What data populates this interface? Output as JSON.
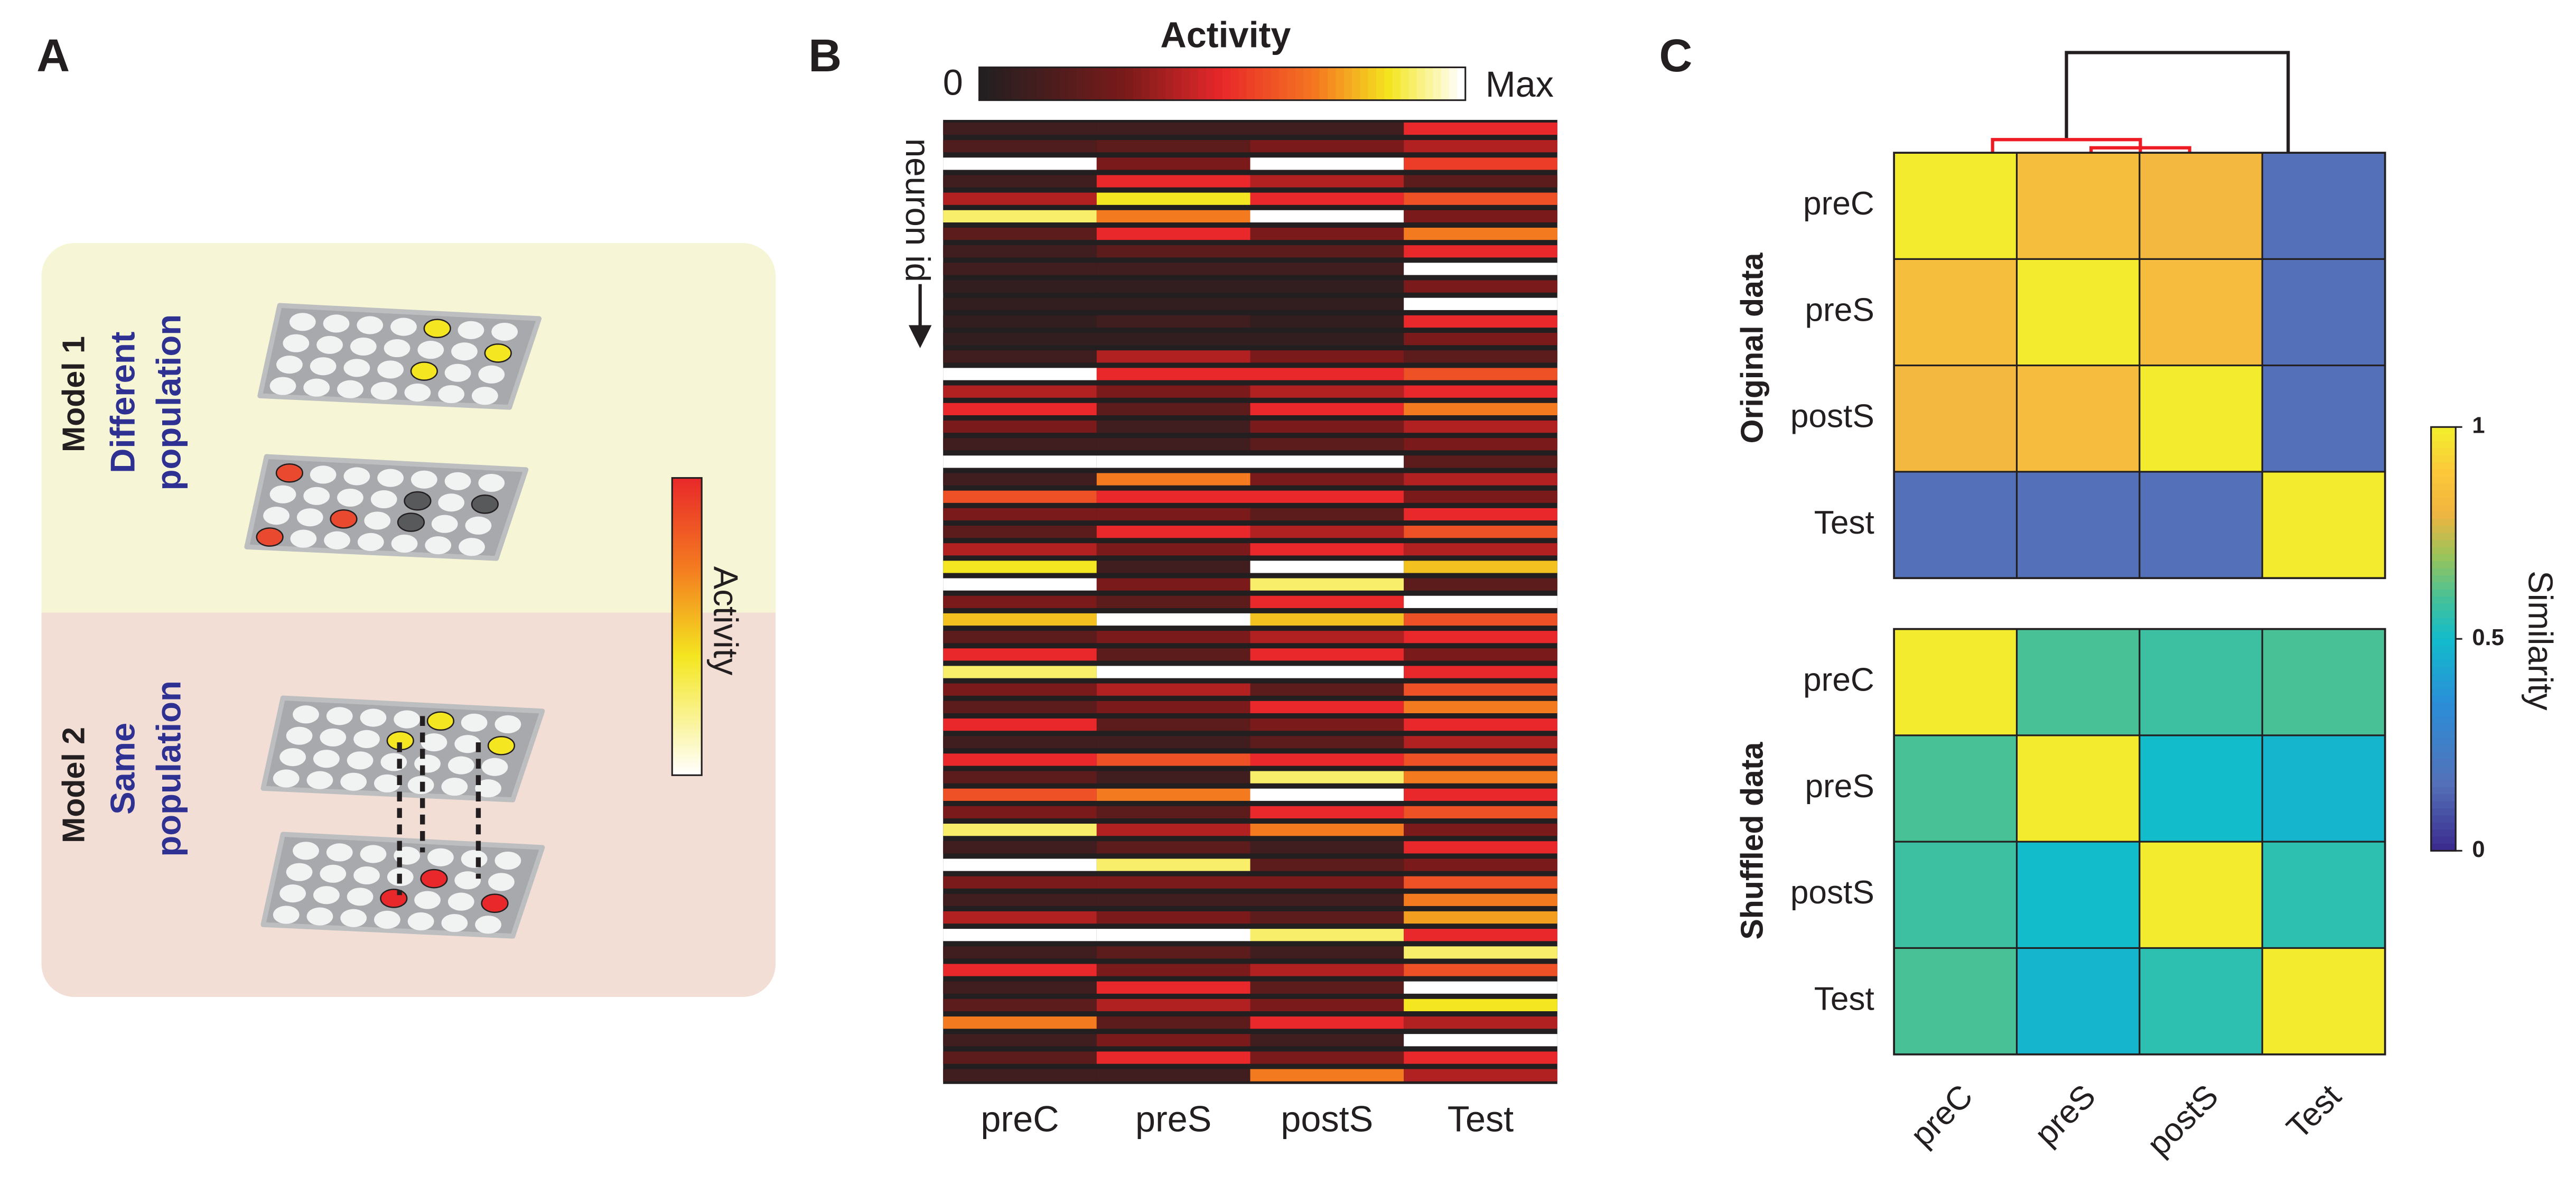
{
  "panels": {
    "a": "A",
    "b": "B",
    "c": "C"
  },
  "panel_a": {
    "model1_label": "Model 1",
    "model1_desc": [
      "Different",
      "population"
    ],
    "model2_label": "Model 2",
    "model2_desc": [
      "Same",
      "population"
    ],
    "colorbar_label": "Activity"
  },
  "panel_b": {
    "title": "Activity",
    "colorbar_min": "0",
    "colorbar_max": "Max",
    "y_label": "neuron id",
    "columns": [
      "preC",
      "preS",
      "postS",
      "Test"
    ],
    "values": [
      [
        0.1,
        0.1,
        0.1,
        0.5
      ],
      [
        0.15,
        0.2,
        0.3,
        0.4
      ],
      [
        1,
        0.3,
        1,
        0.55
      ],
      [
        0.1,
        0.5,
        0.4,
        0.2
      ],
      [
        0.4,
        0.85,
        0.5,
        0.6
      ],
      [
        0.9,
        0.7,
        1,
        0.3
      ],
      [
        0.2,
        0.5,
        0.3,
        0.7
      ],
      [
        0.1,
        0.2,
        0.2,
        0.5
      ],
      [
        0.1,
        0.1,
        0.1,
        1
      ],
      [
        0.05,
        0.05,
        0.05,
        0.3
      ],
      [
        0.05,
        0.05,
        0.05,
        1
      ],
      [
        0.05,
        0.1,
        0.05,
        0.5
      ],
      [
        0.05,
        0.05,
        0.05,
        0.3
      ],
      [
        0.1,
        0.4,
        0.3,
        0.2
      ],
      [
        1,
        0.5,
        0.5,
        0.6
      ],
      [
        0.4,
        0.3,
        0.4,
        0.5
      ],
      [
        0.5,
        0.2,
        0.5,
        0.7
      ],
      [
        0.3,
        0.1,
        0.3,
        0.4
      ],
      [
        0.1,
        0.1,
        0.2,
        0.3
      ],
      [
        1,
        1,
        1,
        0.2
      ],
      [
        0.1,
        0.7,
        0.3,
        0.4
      ],
      [
        0.6,
        0.5,
        0.5,
        0.3
      ],
      [
        0.3,
        0.3,
        0.2,
        0.5
      ],
      [
        0.2,
        0.5,
        0.4,
        0.6
      ],
      [
        0.4,
        0.3,
        0.5,
        0.4
      ],
      [
        0.85,
        0.1,
        1,
        0.8
      ],
      [
        1,
        0.3,
        0.9,
        0.2
      ],
      [
        0.3,
        0.2,
        0.5,
        1
      ],
      [
        0.8,
        1,
        0.8,
        0.6
      ],
      [
        0.2,
        0.3,
        0.4,
        0.5
      ],
      [
        0.5,
        0.2,
        0.5,
        0.3
      ],
      [
        0.9,
        1,
        1,
        0.5
      ],
      [
        0.3,
        0.4,
        0.2,
        0.6
      ],
      [
        0.2,
        0.3,
        0.5,
        0.7
      ],
      [
        0.5,
        0.2,
        0.3,
        0.5
      ],
      [
        0.1,
        0.1,
        0.2,
        0.4
      ],
      [
        0.5,
        0.6,
        0.5,
        0.6
      ],
      [
        0.2,
        0.1,
        0.9,
        0.7
      ],
      [
        0.6,
        0.7,
        1,
        0.5
      ],
      [
        0.3,
        0.2,
        0.5,
        0.6
      ],
      [
        0.9,
        0.4,
        0.7,
        0.3
      ],
      [
        0.1,
        0.2,
        0.1,
        0.5
      ],
      [
        1,
        0.9,
        0.2,
        0.3
      ],
      [
        0.3,
        0.3,
        0.3,
        0.6
      ],
      [
        0.1,
        0.1,
        0.1,
        0.7
      ],
      [
        0.4,
        0.3,
        0.2,
        0.75
      ],
      [
        1,
        1,
        0.9,
        0.5
      ],
      [
        0.1,
        0.2,
        0.1,
        0.9
      ],
      [
        0.5,
        0.3,
        0.4,
        0.6
      ],
      [
        0.1,
        0.5,
        0.2,
        1
      ],
      [
        0.2,
        0.4,
        0.3,
        0.85
      ],
      [
        0.7,
        0.2,
        0.5,
        0.4
      ],
      [
        0.1,
        0.3,
        0.1,
        1
      ],
      [
        0.2,
        0.5,
        0.3,
        0.5
      ],
      [
        0.1,
        0.1,
        0.7,
        0.4
      ]
    ]
  },
  "panel_c": {
    "categories": [
      "preC",
      "preS",
      "postS",
      "Test"
    ],
    "original": {
      "label": "Original data",
      "matrix": [
        [
          1,
          0.85,
          0.82,
          0.15
        ],
        [
          0.85,
          1,
          0.84,
          0.15
        ],
        [
          0.82,
          0.84,
          1,
          0.15
        ],
        [
          0.15,
          0.15,
          0.15,
          1
        ]
      ]
    },
    "shuffled": {
      "label": "Shuffled data",
      "matrix": [
        [
          1,
          0.6,
          0.58,
          0.6
        ],
        [
          0.6,
          1,
          0.5,
          0.48
        ],
        [
          0.58,
          0.5,
          1,
          0.55
        ],
        [
          0.6,
          0.48,
          0.55,
          1
        ]
      ]
    },
    "colorbar": {
      "label": "Similarity",
      "ticks": [
        0,
        0.5,
        1
      ],
      "lim": [
        0,
        1
      ]
    }
  }
}
